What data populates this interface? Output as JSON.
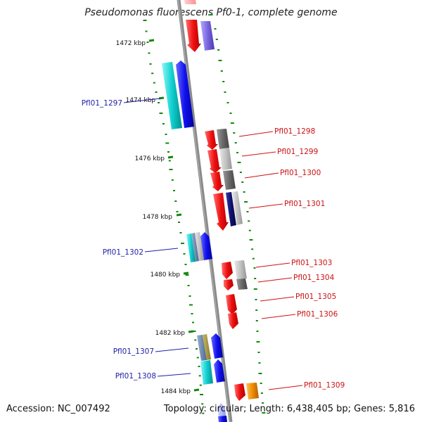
{
  "title": "Pseudomonas fluorescens Pf0-1, complete genome",
  "accession": "Accession: NC_007492",
  "topology": "Topology: circular; Length: 6,438,405 bp; Genes: 5,816",
  "ticks": [
    "1472 kbp",
    "1474 kbp",
    "1476 kbp",
    "1478 kbp",
    "1480 kbp",
    "1482 kbp",
    "1484 kbp"
  ],
  "genes_left": [
    {
      "label": "Pfl01_1297",
      "color": "#1f1fa8"
    },
    {
      "label": "Pfl01_1302",
      "color": "#1f1fa8"
    },
    {
      "label": "Pfl01_1307",
      "color": "#1f1fa8"
    },
    {
      "label": "Pfl01_1308",
      "color": "#1f1fa8"
    }
  ],
  "genes_right": [
    {
      "label": "Pfl01_1298",
      "color": "#cc1111"
    },
    {
      "label": "Pfl01_1299",
      "color": "#cc1111"
    },
    {
      "label": "Pfl01_1300",
      "color": "#cc1111"
    },
    {
      "label": "Pfl01_1301",
      "color": "#cc1111"
    },
    {
      "label": "Pfl01_1303",
      "color": "#cc1111"
    },
    {
      "label": "Pfl01_1304",
      "color": "#cc1111"
    },
    {
      "label": "Pfl01_1305",
      "color": "#cc1111"
    },
    {
      "label": "Pfl01_1306",
      "color": "#cc1111"
    },
    {
      "label": "Pfl01_1309",
      "color": "#cc1111"
    }
  ],
  "colors": {
    "backbone": "#8a8a8a",
    "forward_cds": "#e81818",
    "reverse_cds": "#1010e0",
    "cyan": "#10c8c8",
    "gray_dark": "#6a6a6a",
    "gray_light": "#bdbdbd",
    "navy": "#101070",
    "orange": "#f08c00",
    "tick_green": "#118811"
  }
}
